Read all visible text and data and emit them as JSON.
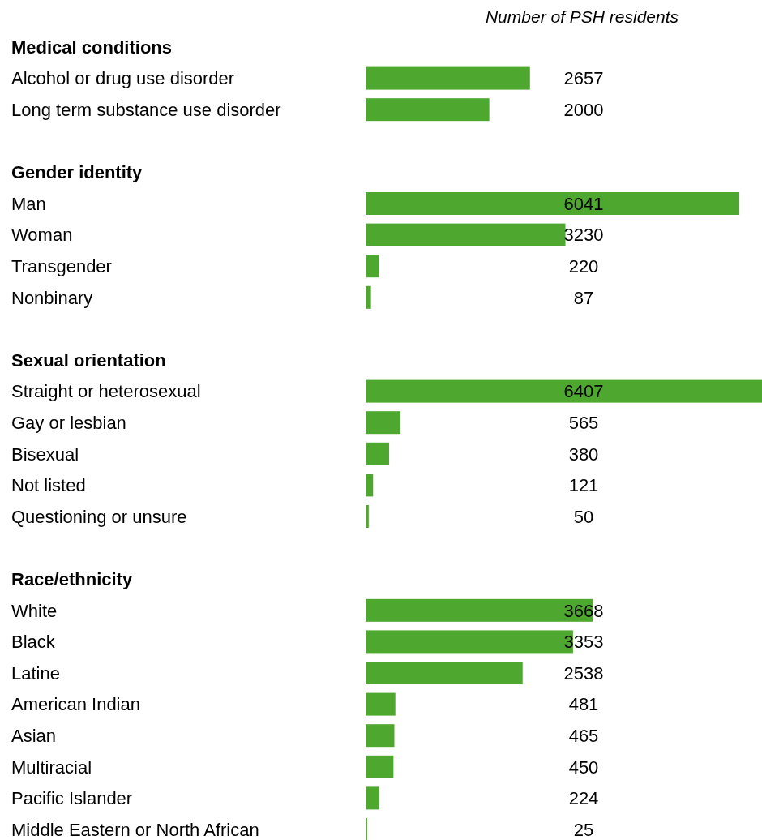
{
  "chart_data": {
    "type": "bar",
    "orientation": "horizontal",
    "xlabel": "Number of PSH residents",
    "categories": [
      "Medical conditions",
      "Alcohol or drug use disorder",
      "Long term substance use disorder",
      null,
      "Gender identity",
      "Man",
      "Woman",
      "Transgender",
      "Nonbinary",
      null,
      "Sexual orientation",
      "Straight or heterosexual",
      "Gay or lesbian",
      "Bisexual",
      "Not listed",
      "Questioning or unsure",
      null,
      "Race/ethnicity",
      "White",
      "Black",
      "Latine",
      "American Indian",
      "Asian",
      "Multiracial",
      "Pacific Islander",
      "Middle Eastern or North African"
    ],
    "values": [
      null,
      2657,
      2000,
      null,
      null,
      6041,
      3230,
      220,
      87,
      null,
      null,
      6407,
      565,
      380,
      121,
      50,
      null,
      null,
      3668,
      3353,
      2538,
      481,
      465,
      450,
      224,
      25
    ],
    "color": "#4ea72e",
    "data_labels": true,
    "tick_labels": "y"
  }
}
